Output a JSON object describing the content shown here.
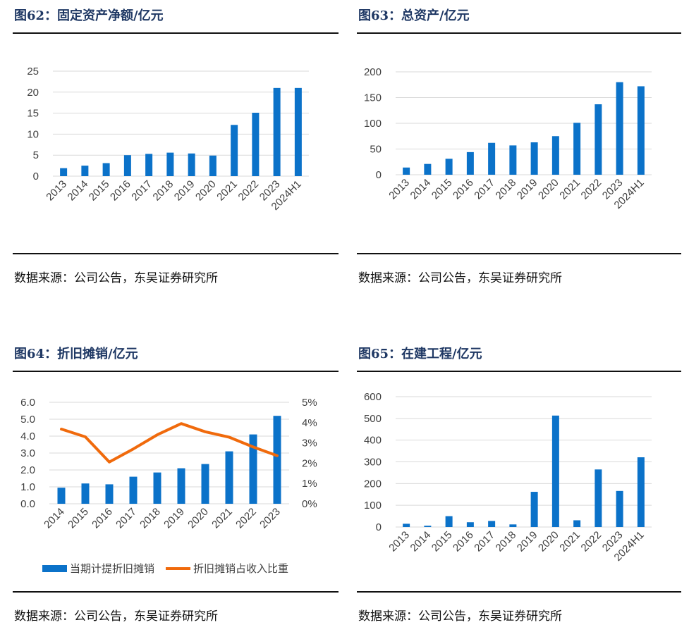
{
  "colors": {
    "bar": "#0b72c9",
    "line": "#f06a0c",
    "grid": "#d9d9d9",
    "title": "#1f3864"
  },
  "panels": [
    {
      "title": "图62：固定资产净额/亿元",
      "source": "数据来源：公司公告，东吴证券研究所"
    },
    {
      "title": "图63：总资产/亿元",
      "source": "数据来源：公司公告，东吴证券研究所"
    },
    {
      "title": "图64：折旧摊销/亿元",
      "source": "数据来源：公司公告，东吴证券研究所"
    },
    {
      "title": "图65：在建工程/亿元",
      "source": "数据来源：公司公告，东吴证券研究所"
    }
  ],
  "chart_data": [
    {
      "type": "bar",
      "categories": [
        "2013",
        "2014",
        "2015",
        "2016",
        "2017",
        "2018",
        "2019",
        "2020",
        "2021",
        "2022",
        "2023",
        "2024H1"
      ],
      "series": [
        {
          "values": [
            1.9,
            2.5,
            3.1,
            5.0,
            5.3,
            5.6,
            5.4,
            4.9,
            12.2,
            15.1,
            21.0,
            21.0
          ]
        }
      ],
      "ylim": [
        0,
        25
      ],
      "yticks": [
        "0",
        "5",
        "10",
        "15",
        "20",
        "25"
      ],
      "grid": true
    },
    {
      "type": "bar",
      "categories": [
        "2013",
        "2014",
        "2015",
        "2016",
        "2017",
        "2018",
        "2019",
        "2020",
        "2021",
        "2022",
        "2023",
        "2024H1"
      ],
      "series": [
        {
          "values": [
            14,
            21,
            31,
            44,
            62,
            57,
            63,
            75,
            101,
            137,
            180,
            172
          ]
        }
      ],
      "ylim": [
        0,
        200
      ],
      "yticks": [
        "0",
        "50",
        "100",
        "150",
        "200"
      ],
      "grid": true
    },
    {
      "type": "bar+line",
      "categories": [
        "2014",
        "2015",
        "2016",
        "2017",
        "2018",
        "2019",
        "2020",
        "2021",
        "2022",
        "2023"
      ],
      "series": [
        {
          "name": "当期计提折旧摊销",
          "type": "bar",
          "axis": "left",
          "values": [
            0.95,
            1.2,
            1.15,
            1.6,
            1.85,
            2.1,
            2.35,
            3.1,
            4.1,
            5.2
          ]
        },
        {
          "name": "折旧摊销占收入比重",
          "type": "line",
          "axis": "right",
          "values": [
            3.68,
            3.3,
            2.06,
            2.7,
            3.4,
            3.95,
            3.55,
            3.28,
            2.8,
            2.37
          ]
        }
      ],
      "ylim": [
        0,
        6
      ],
      "yticks": [
        "0.0",
        "1.0",
        "2.0",
        "3.0",
        "4.0",
        "5.0",
        "6.0"
      ],
      "y2lim": [
        0,
        5
      ],
      "y2ticks": [
        "0%",
        "1%",
        "2%",
        "3%",
        "4%",
        "5%"
      ],
      "legend": "bottom",
      "grid": true
    },
    {
      "type": "bar",
      "categories": [
        "2013",
        "2014",
        "2015",
        "2016",
        "2017",
        "2018",
        "2019",
        "2020",
        "2021",
        "2022",
        "2023",
        "2024H1"
      ],
      "series": [
        {
          "values": [
            15,
            6,
            50,
            22,
            28,
            12,
            162,
            513,
            31,
            265,
            166,
            321
          ]
        }
      ],
      "ylim": [
        0,
        600
      ],
      "yticks": [
        "0",
        "100",
        "200",
        "300",
        "400",
        "500",
        "600"
      ],
      "grid": true
    }
  ]
}
